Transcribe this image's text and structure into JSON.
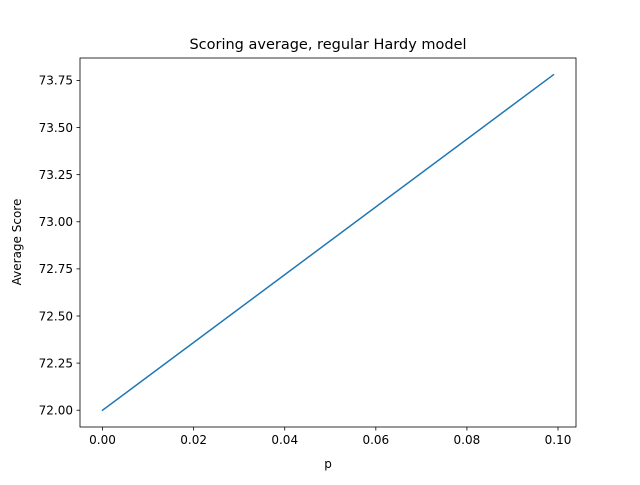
{
  "chart_data": {
    "type": "line",
    "title": "Scoring average, regular Hardy model",
    "xlabel": "p",
    "ylabel": "Average Score",
    "xlim": [
      -0.00495,
      0.10395
    ],
    "ylim": [
      71.911,
      73.869
    ],
    "x_ticks": [
      0.0,
      0.02,
      0.04,
      0.06,
      0.08,
      0.1
    ],
    "x_tick_labels": [
      "0.00",
      "0.02",
      "0.04",
      "0.06",
      "0.08",
      "0.10"
    ],
    "y_ticks": [
      72.0,
      72.25,
      72.5,
      72.75,
      73.0,
      73.25,
      73.5,
      73.75
    ],
    "y_tick_labels": [
      "72.00",
      "72.25",
      "72.50",
      "72.75",
      "73.00",
      "73.25",
      "73.50",
      "73.75"
    ],
    "grid": false,
    "legend": "none",
    "series": [
      {
        "color": "#1f77b4",
        "x": [
          0.0,
          0.099
        ],
        "y": [
          72.0,
          73.78
        ]
      }
    ]
  }
}
